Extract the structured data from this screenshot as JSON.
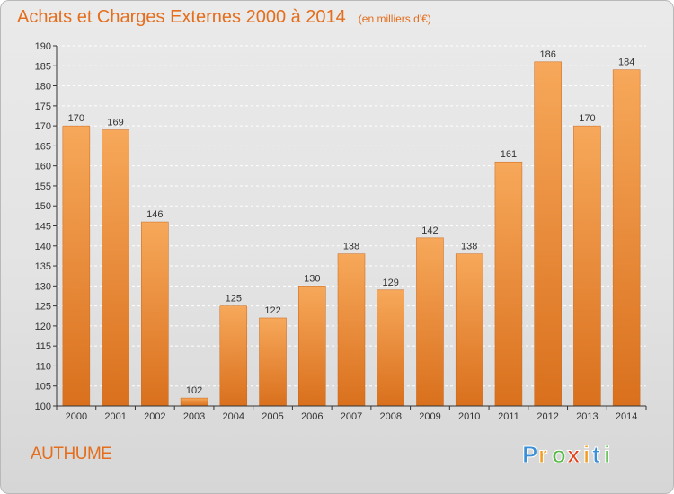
{
  "header": {
    "title": "Achats et Charges Externes 2000 à 2014",
    "unit": "(en milliers d'€)"
  },
  "footer": {
    "commune": "AUTHUME",
    "logo_text": "Proxiti",
    "logo_letters": [
      "P",
      "r",
      "o",
      "x",
      "i",
      "t",
      "i"
    ],
    "logo_colors": [
      "#3a8fd6",
      "#f39c1f",
      "#58b947",
      "#e2421d",
      "#f39c1f",
      "#3a8fd6",
      "#58b947"
    ]
  },
  "colors": {
    "bar_light": "#f7a85a",
    "bar_dark": "#d9701d",
    "accent": "#e46e1d",
    "grid": "#ffffff",
    "axis": "#333333"
  },
  "chart_data": {
    "type": "bar",
    "title": "Achats et Charges Externes 2000 à 2014",
    "subtitle": "(en milliers d'€)",
    "xlabel": "",
    "ylabel": "",
    "categories": [
      "2000",
      "2001",
      "2002",
      "2003",
      "2004",
      "2005",
      "2006",
      "2007",
      "2008",
      "2009",
      "2010",
      "2011",
      "2012",
      "2013",
      "2014"
    ],
    "values": [
      170,
      169,
      146,
      102,
      125,
      122,
      130,
      138,
      129,
      142,
      138,
      161,
      186,
      170,
      184
    ],
    "ylim": [
      100,
      190
    ],
    "yticks": [
      100,
      105,
      110,
      115,
      120,
      125,
      130,
      135,
      140,
      145,
      150,
      155,
      160,
      165,
      170,
      175,
      180,
      185,
      190
    ],
    "grid": true,
    "data_labels": true
  }
}
